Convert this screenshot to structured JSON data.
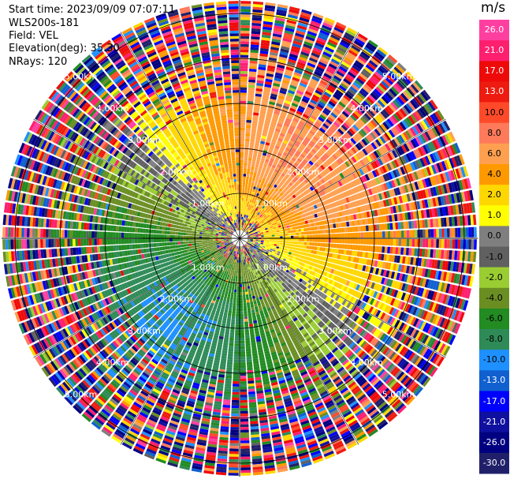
{
  "header": {
    "start_time": "Start time: 2023/09/09 07:07:11",
    "instrument": "WLS200s-181",
    "field": "Field: VEL",
    "elevation": "Elevation(deg): 35.30",
    "nrays": "NRays: 120"
  },
  "chart_data": {
    "type": "heatmap",
    "projection": "polar-ppi",
    "field": "VEL",
    "units": "m/s",
    "n_rays": 120,
    "range_rings_km": [
      1,
      2,
      3,
      4,
      5
    ],
    "range_labels": [
      "1.00km",
      "2.00km",
      "3.00km",
      "4.00km",
      "5.00km"
    ],
    "max_range_km": 5.3,
    "colorbar": {
      "title": "m/s",
      "ticks": [
        "26.0",
        "21.0",
        "17.0",
        "13.0",
        "10.0",
        "8.0",
        "6.0",
        "4.0",
        "2.0",
        "1.0",
        "0.0",
        "-1.0",
        "-2.0",
        "-4.0",
        "-6.0",
        "-8.0",
        "-10.0",
        "-13.0",
        "-17.0",
        "-21.0",
        "-26.0",
        "-30.0"
      ],
      "colors": [
        "#ff3fa0",
        "#ff1f6f",
        "#ef0a0a",
        "#ee1b10",
        "#ff4a2a",
        "#ff7a5a",
        "#ffa050",
        "#ff9900",
        "#ffd700",
        "#ffff00",
        "#7f7f7f",
        "#606060",
        "#9acd32",
        "#6b8e23",
        "#228b22",
        "#2e8b57",
        "#1e90ff",
        "#1060d0",
        "#0000ff",
        "#1010a0",
        "#000080",
        "#20206a"
      ]
    },
    "wind_pattern": {
      "description": "Azimuth-dependent radial velocity: positive to the east/north-east, negative to the south/south-west",
      "positive_peak_azimuth_deg": 40,
      "peak_velocity_ms": 8.0,
      "noise_begins_km": 3.0
    }
  }
}
